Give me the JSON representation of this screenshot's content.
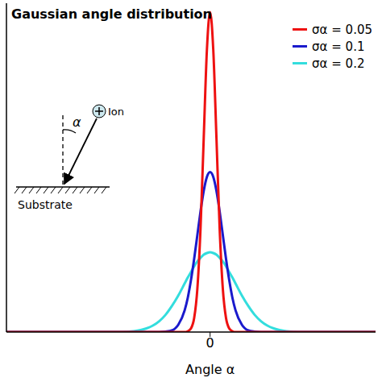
{
  "chart_data": {
    "type": "line",
    "title": "Gaussian angle distribution",
    "x_label": "Angle α",
    "annotations": [
      "α",
      "Ion",
      "Substrate"
    ],
    "x": [
      -1.6,
      -1.2,
      -0.9,
      -0.8,
      -0.7,
      -0.6,
      -0.5,
      -0.45,
      -0.4,
      -0.35,
      -0.3,
      -0.25,
      -0.2,
      -0.175,
      -0.15,
      -0.125,
      -0.1,
      -0.075,
      -0.05,
      -0.025,
      0,
      0.025,
      0.05,
      0.075,
      0.1,
      0.125,
      0.15,
      0.175,
      0.2,
      0.25,
      0.3,
      0.35,
      0.4,
      0.45,
      0.5,
      0.6,
      0.7,
      0.8,
      0.9,
      1.2,
      1.3
    ],
    "series": [
      {
        "name": "σα = 0.05",
        "color": "#ee1111",
        "values": [
          0,
          0,
          0,
          0,
          0,
          0,
          0,
          0,
          0,
          0,
          0,
          0,
          0,
          0.02,
          0.09,
          0.35,
          1.08,
          2.59,
          4.84,
          7.04,
          7.98,
          7.04,
          4.84,
          2.59,
          1.08,
          0.35,
          0.09,
          0.02,
          0,
          0,
          0,
          0,
          0,
          0,
          0,
          0,
          0,
          0,
          0,
          0,
          0
        ]
      },
      {
        "name": "σα = 0.1",
        "color": "#1a1acc",
        "values": [
          0,
          0,
          0,
          0,
          0,
          0,
          0,
          0,
          0,
          0.01,
          0.04,
          0.18,
          0.54,
          0.86,
          1.3,
          1.83,
          2.42,
          3.01,
          3.52,
          3.87,
          3.99,
          3.87,
          3.52,
          3.01,
          2.42,
          1.83,
          1.3,
          0.86,
          0.54,
          0.18,
          0.04,
          0.01,
          0,
          0,
          0,
          0,
          0,
          0,
          0,
          0,
          0
        ]
      },
      {
        "name": "σα = 0.2",
        "color": "#33dddd",
        "values": [
          0,
          0,
          0,
          0,
          0,
          0.02,
          0.09,
          0.16,
          0.27,
          0.43,
          0.65,
          0.91,
          1.21,
          1.36,
          1.5,
          1.64,
          1.76,
          1.85,
          1.93,
          1.97,
          1.99,
          1.97,
          1.93,
          1.85,
          1.76,
          1.64,
          1.5,
          1.36,
          1.21,
          0.91,
          0.65,
          0.43,
          0.27,
          0.16,
          0.09,
          0.02,
          0,
          0,
          0,
          0,
          0
        ]
      }
    ],
    "xlim": [
      -1.6,
      1.3
    ],
    "xticks": [
      0
    ],
    "ylim": [
      0,
      8.2
    ],
    "tick_labels": "x",
    "legend": "upper right",
    "grid": false
  }
}
